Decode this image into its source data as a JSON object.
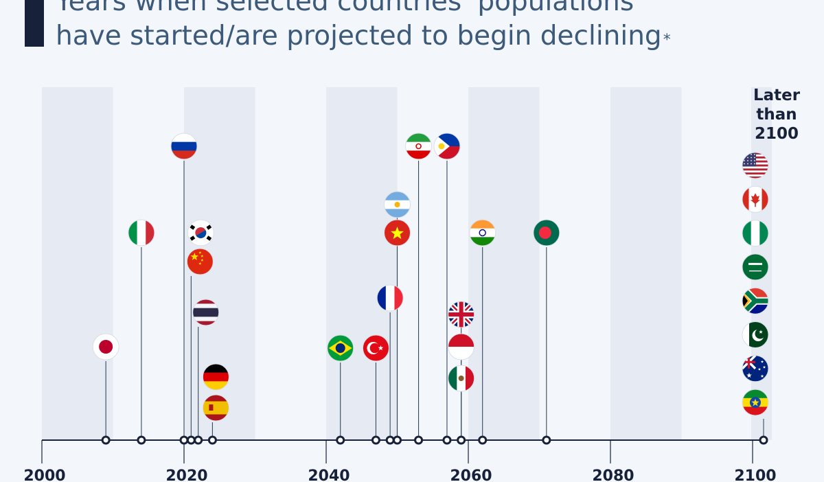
{
  "title": "Years when selected countries' populations have started/are projected to begin declining",
  "title_line1": "Years when selected countries' populations",
  "title_line2": "have started/are projected to begin declining",
  "title_footnote_mark": "*",
  "colors": {
    "background": "#f3f6fa",
    "band": "#e6ebf3",
    "axis": "#17213a",
    "title": "#3d5a7a",
    "title_bar": "#17213a"
  },
  "chart_data": {
    "type": "scatter",
    "title": "Years when selected countries' populations have started/are projected to begin declining",
    "xlabel": "",
    "ylabel": "",
    "xlim": [
      2000,
      2100
    ],
    "x_ticks": [
      "2000",
      "2020",
      "2040",
      "2060",
      "2080",
      "2100"
    ],
    "later_label": [
      "Later",
      "than",
      "2100"
    ],
    "grid_bands": true,
    "points": [
      {
        "country": "Japan",
        "flag": "jp-flag-icon",
        "year": 2009
      },
      {
        "country": "Italy",
        "flag": "it-flag-icon",
        "year": 2014
      },
      {
        "country": "Russia",
        "flag": "ru-flag-icon",
        "year": 2020
      },
      {
        "country": "South Korea",
        "flag": "kr-flag-icon",
        "year": 2021
      },
      {
        "country": "China",
        "flag": "cn-flag-icon",
        "year": 2021
      },
      {
        "country": "Thailand",
        "flag": "th-flag-icon",
        "year": 2022
      },
      {
        "country": "Germany",
        "flag": "de-flag-icon",
        "year": 2024
      },
      {
        "country": "Spain",
        "flag": "es-flag-icon",
        "year": 2024
      },
      {
        "country": "Brazil",
        "flag": "br-flag-icon",
        "year": 2042
      },
      {
        "country": "Turkey",
        "flag": "tr-flag-icon",
        "year": 2047
      },
      {
        "country": "France",
        "flag": "fr-flag-icon",
        "year": 2049
      },
      {
        "country": "Argentina",
        "flag": "ar-flag-icon",
        "year": 2050
      },
      {
        "country": "Vietnam",
        "flag": "vn-flag-icon",
        "year": 2050
      },
      {
        "country": "Iran",
        "flag": "ir-flag-icon",
        "year": 2053
      },
      {
        "country": "Philippines",
        "flag": "ph-flag-icon",
        "year": 2057
      },
      {
        "country": "United Kingdom",
        "flag": "gb-flag-icon",
        "year": 2059
      },
      {
        "country": "Indonesia",
        "flag": "id-flag-icon",
        "year": 2059
      },
      {
        "country": "Mexico",
        "flag": "mx-flag-icon",
        "year": 2059
      },
      {
        "country": "India",
        "flag": "in-flag-icon",
        "year": 2062
      },
      {
        "country": "Bangladesh",
        "flag": "bd-flag-icon",
        "year": 2071
      }
    ],
    "later_than_2100": [
      {
        "country": "United States",
        "flag": "us-flag-icon"
      },
      {
        "country": "Canada",
        "flag": "ca-flag-icon"
      },
      {
        "country": "Nigeria",
        "flag": "ng-flag-icon"
      },
      {
        "country": "Saudi Arabia",
        "flag": "sa-flag-icon"
      },
      {
        "country": "South Africa",
        "flag": "za-flag-icon"
      },
      {
        "country": "Pakistan",
        "flag": "pk-flag-icon"
      },
      {
        "country": "Australia",
        "flag": "au-flag-icon"
      },
      {
        "country": "Ethiopia",
        "flag": "et-flag-icon"
      }
    ]
  }
}
